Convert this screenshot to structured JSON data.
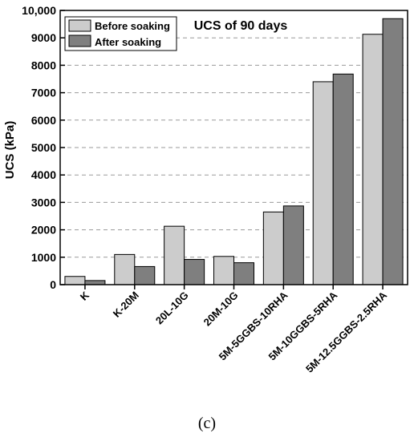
{
  "chart_data": {
    "type": "bar",
    "title": "UCS of 90 days",
    "ylabel": "UCS (kPa)",
    "xlabel": "",
    "ylim": [
      0,
      10000
    ],
    "yticks": [
      0,
      1000,
      2000,
      3000,
      4000,
      5000,
      6000,
      7000,
      8000,
      9000,
      10000
    ],
    "ytick_labels": [
      "0",
      "1000",
      "2000",
      "3000",
      "4000",
      "5000",
      "6000",
      "7000",
      "8000",
      "9000",
      "10,000"
    ],
    "grid": "horizontal dashed",
    "legend_position": "top-left",
    "categories": [
      "K",
      "K-20M",
      "20L-10G",
      "20M-10G",
      "5M-5GGBS-10RHA",
      "5M-10GGBS-5RHA",
      "5M-12.5GGBS-2.5RHA"
    ],
    "series": [
      {
        "name": "Before soaking",
        "color": "#cccccc",
        "values": [
          300,
          1100,
          2130,
          1030,
          2650,
          7400,
          9130
        ]
      },
      {
        "name": "After soaking",
        "color": "#7f7f7f",
        "values": [
          150,
          660,
          920,
          800,
          2870,
          7680,
          9700
        ]
      }
    ]
  },
  "caption": "(c)"
}
